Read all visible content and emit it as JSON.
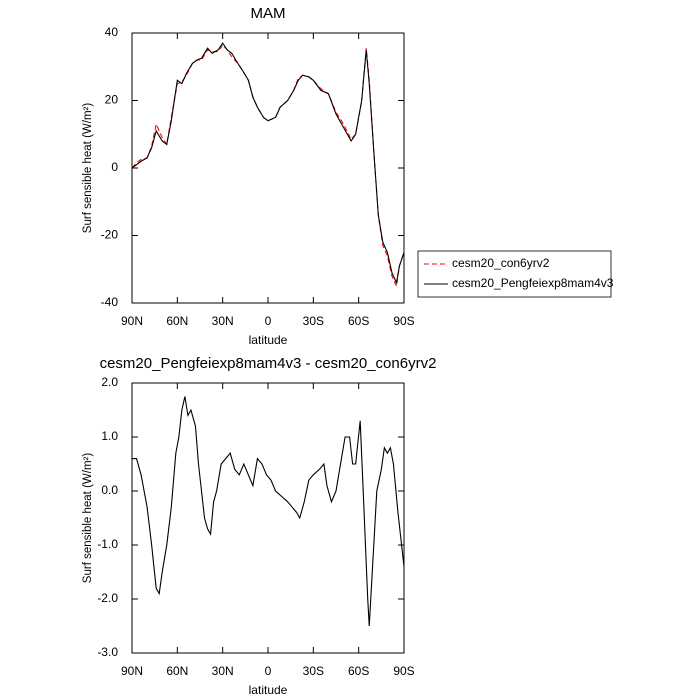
{
  "chart_data": [
    {
      "type": "line",
      "title": "MAM",
      "x_label": "latitude",
      "y_label": "Surf sensible heat (W/m²)",
      "x": [
        90,
        87,
        84,
        80,
        77,
        74,
        70,
        67,
        64,
        60,
        57,
        54,
        50,
        47,
        44,
        40,
        37,
        33,
        30,
        27,
        24,
        20,
        17,
        13,
        10,
        7,
        3,
        0,
        -5,
        -8,
        -13,
        -17,
        -20,
        -23,
        -27,
        -30,
        -35,
        -40,
        -45,
        -50,
        -55,
        -58,
        -62,
        -65,
        -67,
        -70,
        -73,
        -76,
        -79,
        -82,
        -85,
        -87,
        -90
      ],
      "series": [
        {
          "name": "cesm20_con6yrv2",
          "color": "#ff0000",
          "dash": true,
          "values": [
            0,
            1.5,
            2.5,
            3,
            6.5,
            13,
            9,
            7,
            15,
            25,
            25.5,
            27.5,
            31,
            32,
            32,
            35,
            34.5,
            34.5,
            36.5,
            35,
            33,
            31,
            29,
            26,
            21,
            18,
            15,
            14,
            15,
            18,
            20,
            23,
            26.5,
            27.5,
            27,
            26,
            23.5,
            22,
            16.5,
            13,
            8.5,
            10,
            20,
            35.5,
            26,
            5,
            -14,
            -23,
            -26,
            -32,
            -35,
            -29,
            -25
          ]
        },
        {
          "name": "cesm20_Pengfeiexp8mam4v3",
          "color": "#000000",
          "dash": false,
          "values": [
            0,
            1,
            2,
            3,
            6,
            11,
            8,
            7,
            14,
            26,
            25,
            28,
            31,
            32,
            32.5,
            35.5,
            34,
            35,
            37,
            35,
            34,
            31,
            29,
            26,
            21,
            18,
            15,
            14,
            15,
            18,
            20,
            23,
            26,
            27.5,
            27,
            26,
            23,
            22,
            16,
            12,
            8,
            10,
            20,
            35,
            25,
            5,
            -14,
            -22,
            -25,
            -31,
            -34,
            -29,
            -25
          ]
        }
      ],
      "xlim": [
        90,
        -90
      ],
      "xticks": [
        {
          "value": 90,
          "label": "90N"
        },
        {
          "value": 60,
          "label": "60N"
        },
        {
          "value": 30,
          "label": "30N"
        },
        0,
        {
          "value": -30,
          "label": "30S"
        },
        {
          "value": -60,
          "label": "60S"
        },
        {
          "value": -90,
          "label": "90S"
        }
      ],
      "ylim": [
        -40,
        40
      ],
      "yticks": [
        -40,
        -20,
        0,
        20,
        40
      ],
      "legend": "right"
    },
    {
      "type": "line",
      "title": "cesm20_Pengfeiexp8mam4v3 - cesm20_con6yrv2",
      "x_label": "latitude",
      "y_label": "Surf sensible heat (W/m²)",
      "x": [
        90,
        87,
        84,
        80,
        77,
        74,
        72,
        70,
        67,
        64,
        61,
        59,
        57,
        55,
        53,
        51,
        48,
        46,
        44,
        42,
        40,
        38,
        36,
        34,
        31,
        28,
        25,
        22,
        19,
        16,
        13,
        10,
        7,
        4,
        1,
        -2,
        -5,
        -9,
        -13,
        -16,
        -19,
        -21,
        -24,
        -27,
        -30,
        -34,
        -37,
        -39,
        -42,
        -45,
        -48,
        -51,
        -54,
        -56,
        -58,
        -61,
        -63,
        -66,
        -67,
        -69,
        -72,
        -75,
        -77,
        -79,
        -81,
        -83,
        -86,
        -90
      ],
      "series": [
        {
          "name": "cesm20_Pengfeiexp8mam4v3 - cesm20_con6yrv2",
          "color": "#000000",
          "dash": false,
          "values": [
            0.6,
            0.6,
            0.3,
            -0.3,
            -1.0,
            -1.8,
            -1.9,
            -1.5,
            -1.0,
            -0.3,
            0.7,
            1.0,
            1.5,
            1.75,
            1.4,
            1.5,
            1.2,
            0.5,
            0.0,
            -0.5,
            -0.7,
            -0.8,
            -0.2,
            0.0,
            0.5,
            0.6,
            0.7,
            0.4,
            0.3,
            0.5,
            0.3,
            0.1,
            0.6,
            0.5,
            0.3,
            0.2,
            0.0,
            -0.1,
            -0.2,
            -0.3,
            -0.4,
            -0.5,
            -0.2,
            0.2,
            0.3,
            0.4,
            0.5,
            0.1,
            -0.2,
            0.0,
            0.5,
            1.0,
            1.0,
            0.5,
            0.5,
            1.3,
            0.0,
            -2.0,
            -2.5,
            -1.5,
            0.0,
            0.4,
            0.8,
            0.7,
            0.8,
            0.5,
            -0.4,
            -1.4
          ]
        }
      ],
      "xlim": [
        90,
        -90
      ],
      "xticks": [
        {
          "value": 90,
          "label": "90N"
        },
        {
          "value": 60,
          "label": "60N"
        },
        {
          "value": 30,
          "label": "30N"
        },
        0,
        {
          "value": -30,
          "label": "30S"
        },
        {
          "value": -60,
          "label": "60S"
        },
        {
          "value": -90,
          "label": "90S"
        }
      ],
      "ylim": [
        -3,
        2
      ],
      "yticks": [
        {
          "value": 2,
          "label": "2.0"
        },
        {
          "value": 1,
          "label": "1.0"
        },
        {
          "value": 0,
          "label": "0.0"
        },
        {
          "value": -1,
          "label": "-1.0"
        },
        {
          "value": -2,
          "label": "-2.0"
        },
        {
          "value": -3,
          "label": "-3.0"
        }
      ]
    }
  ]
}
